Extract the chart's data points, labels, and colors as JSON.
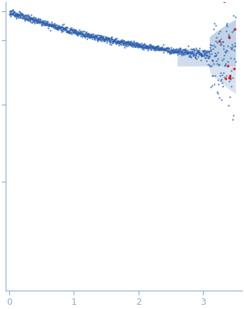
{
  "title": "",
  "xlabel": "",
  "ylabel": "",
  "xlim": [
    -0.05,
    3.6
  ],
  "x_ticks": [
    0,
    1,
    2,
    3
  ],
  "background_color": "#ffffff",
  "dot_color_main": "#2b5fad",
  "dot_color_outlier": "#cc2222",
  "band_color": "#b8cce4",
  "band_alpha": 0.55,
  "figsize": [
    3.45,
    4.37
  ],
  "dpi": 100
}
